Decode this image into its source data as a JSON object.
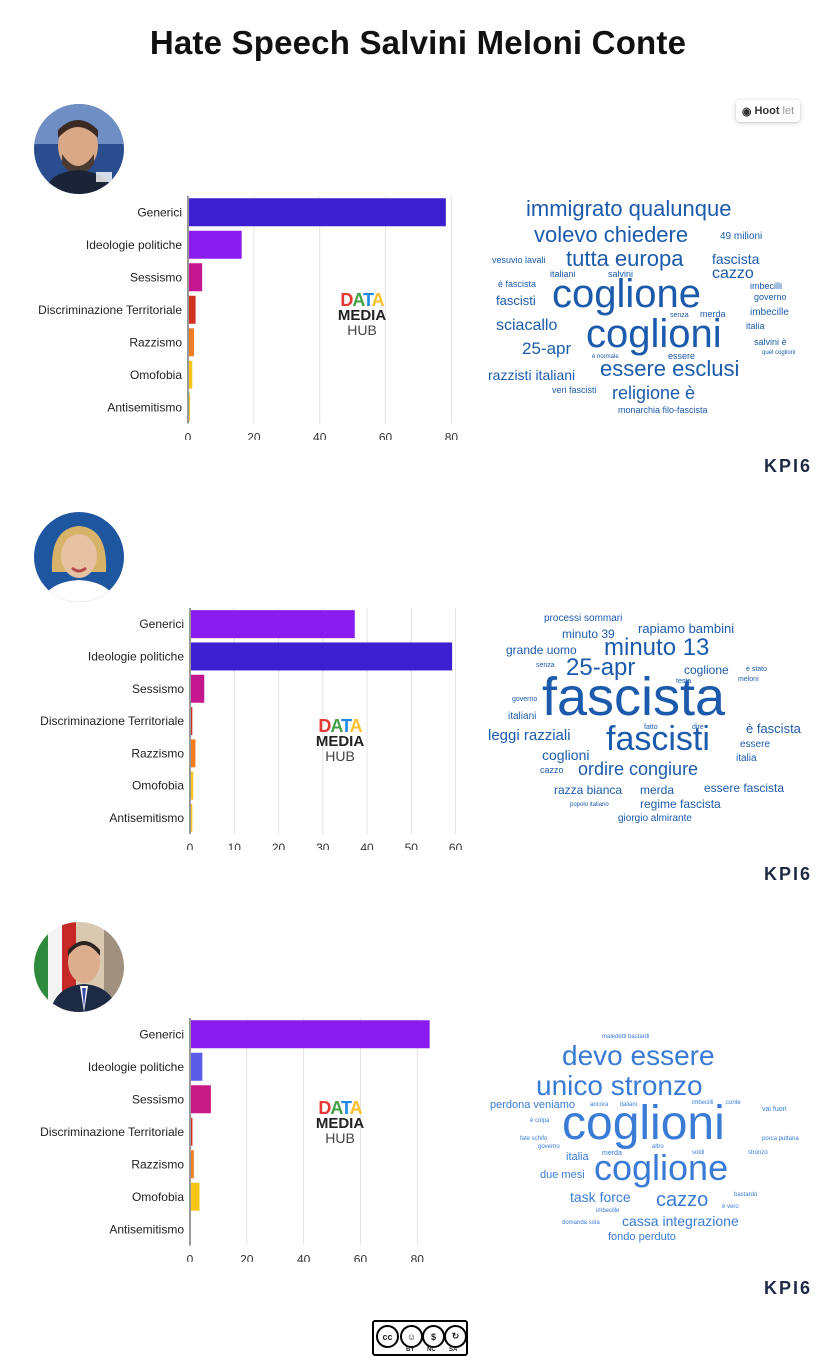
{
  "title": "Hate Speech Salvini Meloni Conte",
  "hootlet": {
    "brand": "Hoot",
    "suffix": "let"
  },
  "watermark": {
    "line1": "DATA",
    "line2": "MEDIA",
    "line3": "HUB"
  },
  "kpi_logo": "KPI6",
  "license": {
    "cc": "cc",
    "by": "BY",
    "nc": "NC",
    "sa": "SA"
  },
  "colors": {
    "blue_dark": "#3b1fd1",
    "purple": "#8a1cf0",
    "magenta": "#c4168f",
    "red": "#d3311f",
    "orange": "#f07d20",
    "yellow": "#f5c518",
    "cloud_blue": "#1c5bab",
    "indigo": "#5b5be6",
    "pink": "#c91b86"
  },
  "chart_data": [
    {
      "type": "bar",
      "orientation": "horizontal",
      "categories": [
        "Generici",
        "Ideologie politiche",
        "Sessismo",
        "Discriminazione Territoriale",
        "Razzismo",
        "Omofobia",
        "Antisemitismo"
      ],
      "values": [
        78,
        16,
        4,
        2,
        1.5,
        1,
        0.3
      ],
      "bar_colors": [
        "#3b1fd1",
        "#8a1cf0",
        "#c4168f",
        "#d3311f",
        "#f07d20",
        "#f5c518",
        "#f5c518"
      ],
      "xlim": [
        0,
        82
      ],
      "xticks": [
        0,
        20,
        40,
        60,
        80
      ],
      "grid": true
    },
    {
      "type": "bar",
      "orientation": "horizontal",
      "categories": [
        "Generici",
        "Ideologie politiche",
        "Sessismo",
        "Discriminazione Territoriale",
        "Razzismo",
        "Omofobia",
        "Antisemitismo"
      ],
      "values": [
        37,
        59,
        3,
        0.3,
        1,
        0.5,
        0.3
      ],
      "bar_colors": [
        "#8a1cf0",
        "#3b1fd1",
        "#c4168f",
        "#d3311f",
        "#f07d20",
        "#f5c518",
        "#f5c518"
      ],
      "xlim": [
        0,
        61
      ],
      "xticks": [
        0,
        10,
        20,
        30,
        40,
        50,
        60
      ],
      "grid": true
    },
    {
      "type": "bar",
      "orientation": "horizontal",
      "categories": [
        "Generici",
        "Ideologie politiche",
        "Sessismo",
        "Discriminazione Territoriale",
        "Razzismo",
        "Omofobia",
        "Antisemitismo"
      ],
      "values": [
        84,
        4,
        7,
        0.5,
        1,
        3,
        0
      ],
      "bar_colors": [
        "#8a1cf0",
        "#5b5be6",
        "#c91b86",
        "#d3311f",
        "#f07d20",
        "#f5c518",
        "#f5c518"
      ],
      "xlim": [
        0,
        88
      ],
      "xticks": [
        0,
        20,
        40,
        60,
        80
      ],
      "grid": true
    }
  ],
  "wordclouds": [
    [
      "immigrato qualunque",
      "volevo chiedere",
      "49 milioni",
      "vesuvio lavali",
      "tutta europa",
      "fascista",
      "italiani",
      "salvini",
      "cazzo",
      "è fascista",
      "coglione",
      "imbecilli",
      "governo",
      "fascisti",
      "senza",
      "merda",
      "imbecille",
      "sciacallo",
      "coglioni",
      "italia",
      "25-apr",
      "salvini è",
      "è normale",
      "essere",
      "quel coglioni",
      "razzisti italiani",
      "essere esclusi",
      "veri fascisti",
      "religione è",
      "monarchia filo-fascista"
    ],
    [
      "processi sommari",
      "minuto 39",
      "rapiamo bambini",
      "grande uomo",
      "minuto 13",
      "senza",
      "25-apr",
      "coglione",
      "è stato",
      "testa",
      "meloni",
      "governo",
      "fascista",
      "italiani",
      "fatto",
      "dire",
      "è fascista",
      "leggi razziali",
      "fascisti",
      "essere",
      "coglioni",
      "italia",
      "cazzo",
      "ordire congiure",
      "razza bianca",
      "merda",
      "essere fascista",
      "popolo italiano",
      "regime fascista",
      "giorgio almirante"
    ],
    [
      "maledetti bastardi",
      "devo essere",
      "unico stronzo",
      "perdona veniamo",
      "ancora",
      "italiani",
      "imbecilli",
      "conte",
      "vai fuori",
      "è colpa",
      "coglioni",
      "fate schifo",
      "porca puttana",
      "governo",
      "altro",
      "italia",
      "merda",
      "soldi",
      "stronzo",
      "due mesi",
      "coglione",
      "task force",
      "bastardo",
      "cazzo",
      "imbecille",
      "è vero",
      "domanda sola",
      "cassa integrazione",
      "fondo perduto"
    ]
  ]
}
